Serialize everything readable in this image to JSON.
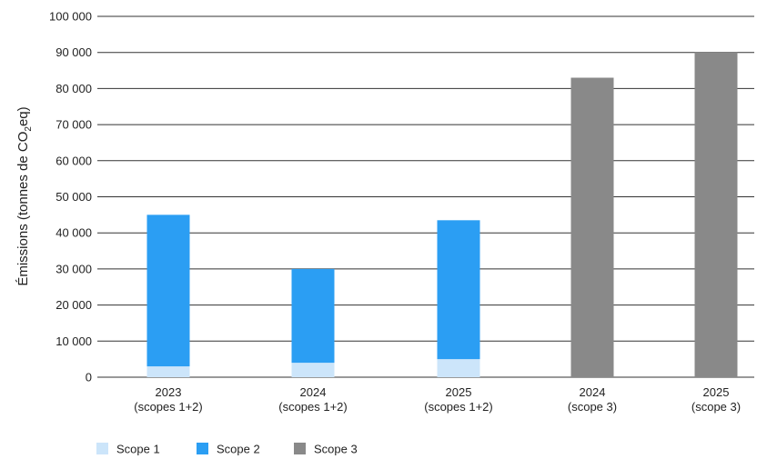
{
  "chart_data": {
    "type": "bar",
    "stacked": true,
    "ylabel": {
      "prefix": "Émissions (tonnes de CO",
      "subscript": "2",
      "suffix": "eq)"
    },
    "ylim": [
      0,
      100000
    ],
    "yticks": [
      0,
      10000,
      20000,
      30000,
      40000,
      50000,
      60000,
      70000,
      80000,
      90000,
      100000
    ],
    "ytick_labels": [
      "0",
      "10 000",
      "20 000",
      "30 000",
      "40 000",
      "50 000",
      "60 000",
      "70 000",
      "80 000",
      "90 000",
      "100 000"
    ],
    "grid": true,
    "categories": [
      {
        "line1": "2023",
        "line2": "(scopes 1+2)"
      },
      {
        "line1": "2024",
        "line2": "(scopes 1+2)"
      },
      {
        "line1": "2025",
        "line2": "(scopes 1+2)"
      },
      {
        "line1": "2024",
        "line2": "(scope 3)"
      },
      {
        "line1": "2025",
        "line2": "(scope 3)"
      }
    ],
    "series": [
      {
        "name": "Scope 1",
        "color": "#cce5fa",
        "values": [
          3000,
          4000,
          5000,
          0,
          0
        ]
      },
      {
        "name": "Scope 2",
        "color": "#2b9ef3",
        "values": [
          42000,
          26000,
          38500,
          0,
          0
        ]
      },
      {
        "name": "Scope 3",
        "color": "#898989",
        "values": [
          0,
          0,
          0,
          83000,
          90000
        ]
      }
    ],
    "legend_position": "bottom-left"
  }
}
